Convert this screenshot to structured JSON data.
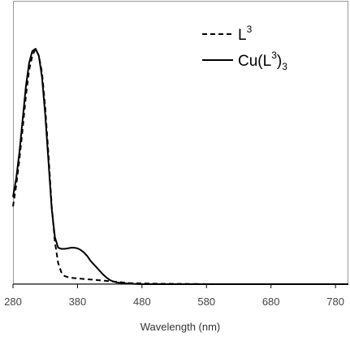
{
  "chart_data": {
    "type": "line",
    "title": "",
    "xlabel": "Wavelength (nm)",
    "ylabel": "",
    "xlim": [
      280,
      800
    ],
    "ylim": [
      0,
      1.0
    ],
    "x_ticks": [
      "280",
      "380",
      "480",
      "580",
      "680",
      "780"
    ],
    "x_tick_values": [
      280,
      380,
      480,
      580,
      680,
      780
    ],
    "legend_placement": "top-right",
    "series": [
      {
        "name": "L3",
        "legend_text": "L",
        "legend_sup": "3",
        "style": "dashed",
        "color": "#000000",
        "x": [
          280,
          285,
          290,
          295,
          300,
          305,
          310,
          315,
          320,
          325,
          330,
          335,
          340,
          345,
          350,
          355,
          360,
          365,
          370,
          380,
          390,
          400,
          420,
          440,
          460,
          500,
          600,
          700,
          800
        ],
        "y": [
          0.33,
          0.42,
          0.53,
          0.66,
          0.8,
          0.91,
          0.97,
          1.0,
          0.97,
          0.9,
          0.75,
          0.55,
          0.33,
          0.18,
          0.09,
          0.05,
          0.035,
          0.03,
          0.027,
          0.025,
          0.022,
          0.02,
          0.015,
          0.01,
          0.005,
          0.002,
          0.0,
          0.0,
          0.0
        ]
      },
      {
        "name": "Cu(L3)3",
        "legend_text": "Cu(L",
        "legend_sup": "3",
        "legend_text2": ")",
        "legend_sub": "3",
        "style": "solid",
        "color": "#000000",
        "x": [
          280,
          285,
          290,
          295,
          300,
          305,
          310,
          315,
          320,
          325,
          330,
          335,
          340,
          345,
          350,
          355,
          360,
          365,
          370,
          375,
          380,
          385,
          390,
          395,
          400,
          405,
          410,
          415,
          420,
          425,
          430,
          435,
          440,
          450,
          460,
          470,
          480,
          500,
          550,
          600,
          700,
          800
        ],
        "y": [
          0.37,
          0.45,
          0.56,
          0.7,
          0.84,
          0.94,
          0.99,
          1.0,
          0.97,
          0.88,
          0.72,
          0.52,
          0.32,
          0.2,
          0.155,
          0.15,
          0.15,
          0.152,
          0.155,
          0.155,
          0.152,
          0.145,
          0.135,
          0.12,
          0.1,
          0.085,
          0.07,
          0.055,
          0.04,
          0.028,
          0.018,
          0.012,
          0.008,
          0.004,
          0.002,
          0.001,
          0.0,
          0.0,
          0.0,
          0.0,
          0.0,
          0.0
        ]
      }
    ]
  }
}
